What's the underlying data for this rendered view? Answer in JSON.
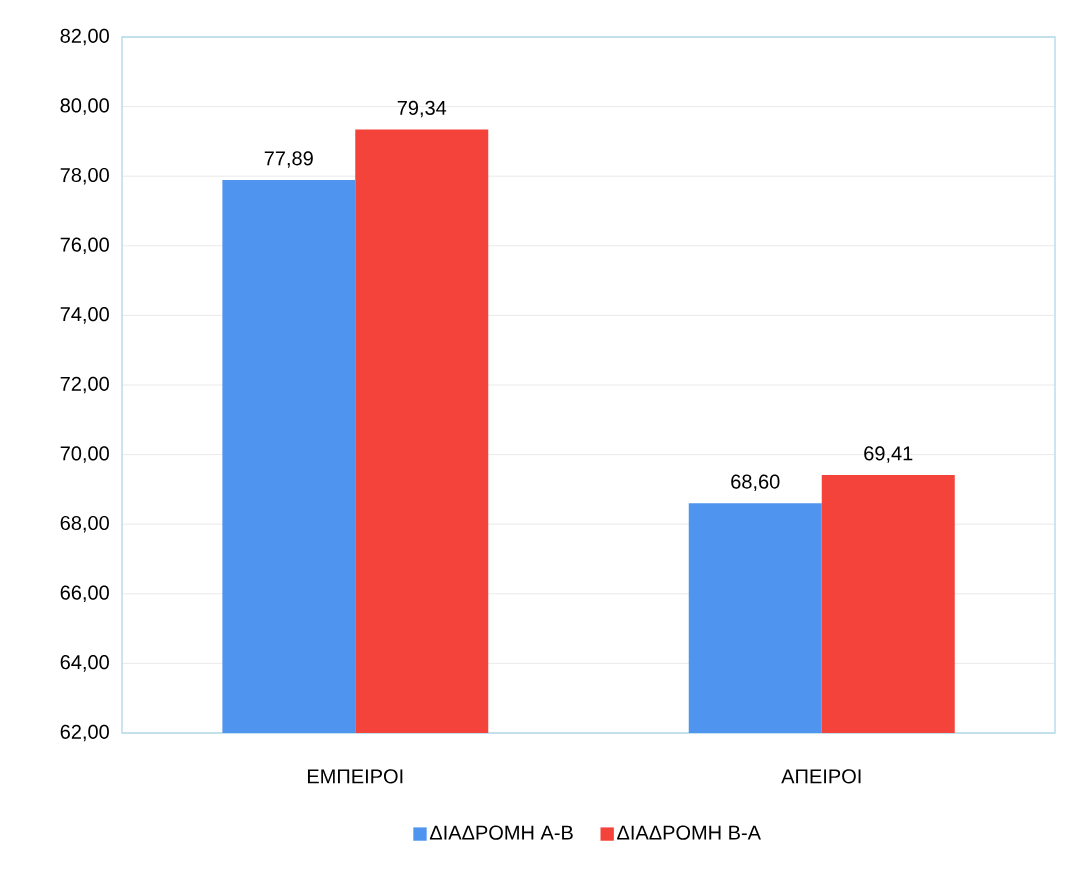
{
  "chart_data": {
    "type": "bar",
    "categories": [
      "ΕΜΠΕΙΡΟΙ",
      "ΑΠΕΙΡΟΙ"
    ],
    "series": [
      {
        "name": "ΔΙΑΔΡΟΜΗ Α-Β",
        "color": "#4f94ee",
        "values": [
          77.89,
          68.6
        ],
        "value_labels": [
          "77,89",
          "68,60"
        ]
      },
      {
        "name": "ΔΙΑΔΡΟΜΗ Β-Α",
        "color": "#f4433a",
        "values": [
          79.34,
          69.41
        ],
        "value_labels": [
          "79,34",
          "69,41"
        ]
      }
    ],
    "ylim": [
      62,
      82
    ],
    "yticks": [
      {
        "value": 62,
        "label": "62,00"
      },
      {
        "value": 64,
        "label": "64,00"
      },
      {
        "value": 66,
        "label": "66,00"
      },
      {
        "value": 68,
        "label": "68,00"
      },
      {
        "value": 70,
        "label": "70,00"
      },
      {
        "value": 72,
        "label": "72,00"
      },
      {
        "value": 74,
        "label": "74,00"
      },
      {
        "value": 76,
        "label": "76,00"
      },
      {
        "value": 78,
        "label": "78,00"
      },
      {
        "value": 80,
        "label": "80,00"
      },
      {
        "value": 82,
        "label": "82,00"
      }
    ],
    "grid": "y",
    "legend": "bottom"
  }
}
